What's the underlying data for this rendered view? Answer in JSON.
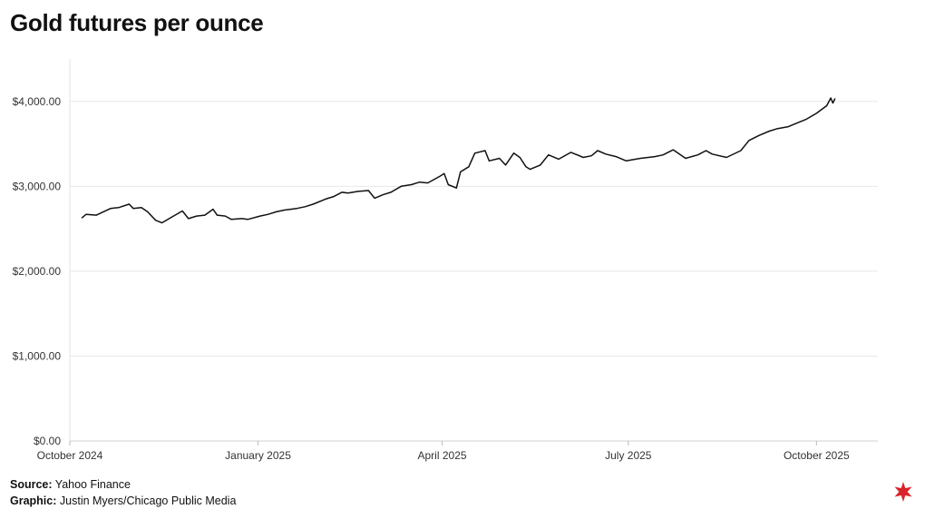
{
  "chart_data": {
    "type": "line",
    "title": "Gold futures per ounce",
    "xlabel": "",
    "ylabel": "",
    "x_ticks": [
      "October 2024",
      "January 2025",
      "April 2025",
      "July 2025",
      "October 2025"
    ],
    "y_ticks": [
      "$0.00",
      "$1,000.00",
      "$2,000.00",
      "$3,000.00",
      "$4,000.00"
    ],
    "ylim": [
      0,
      4500
    ],
    "xlim": [
      "2024-10-01",
      "2025-10-31"
    ],
    "grid": "horizontal",
    "line_color": "#111111",
    "x": [
      "2024-10-07",
      "2024-10-09",
      "2024-10-14",
      "2024-10-21",
      "2024-10-25",
      "2024-10-30",
      "2024-11-01",
      "2024-11-05",
      "2024-11-08",
      "2024-11-12",
      "2024-11-15",
      "2024-11-20",
      "2024-11-25",
      "2024-11-28",
      "2024-12-02",
      "2024-12-06",
      "2024-12-10",
      "2024-12-12",
      "2024-12-16",
      "2024-12-19",
      "2024-12-24",
      "2024-12-27",
      "2025-01-02",
      "2025-01-06",
      "2025-01-10",
      "2025-01-14",
      "2025-01-20",
      "2025-01-24",
      "2025-01-28",
      "2025-02-03",
      "2025-02-07",
      "2025-02-11",
      "2025-02-14",
      "2025-02-19",
      "2025-02-24",
      "2025-02-27",
      "2025-03-03",
      "2025-03-07",
      "2025-03-12",
      "2025-03-17",
      "2025-03-21",
      "2025-03-25",
      "2025-03-31",
      "2025-04-02",
      "2025-04-04",
      "2025-04-08",
      "2025-04-10",
      "2025-04-14",
      "2025-04-17",
      "2025-04-22",
      "2025-04-24",
      "2025-04-29",
      "2025-05-02",
      "2025-05-06",
      "2025-05-09",
      "2025-05-12",
      "2025-05-14",
      "2025-05-19",
      "2025-05-23",
      "2025-05-28",
      "2025-06-03",
      "2025-06-09",
      "2025-06-13",
      "2025-06-16",
      "2025-06-20",
      "2025-06-25",
      "2025-06-30",
      "2025-07-07",
      "2025-07-14",
      "2025-07-18",
      "2025-07-23",
      "2025-07-29",
      "2025-08-04",
      "2025-08-08",
      "2025-08-11",
      "2025-08-18",
      "2025-08-25",
      "2025-08-29",
      "2025-09-03",
      "2025-09-08",
      "2025-09-12",
      "2025-09-17",
      "2025-09-23",
      "2025-09-26",
      "2025-10-01",
      "2025-10-06",
      "2025-10-08",
      "2025-10-09",
      "2025-10-10"
    ],
    "values": [
      2630,
      2670,
      2660,
      2740,
      2750,
      2790,
      2740,
      2750,
      2700,
      2600,
      2570,
      2640,
      2710,
      2620,
      2650,
      2660,
      2730,
      2660,
      2650,
      2610,
      2620,
      2610,
      2650,
      2670,
      2700,
      2720,
      2740,
      2760,
      2790,
      2850,
      2880,
      2930,
      2920,
      2940,
      2950,
      2860,
      2900,
      2930,
      3000,
      3020,
      3050,
      3040,
      3120,
      3150,
      3020,
      2980,
      3170,
      3230,
      3390,
      3420,
      3300,
      3330,
      3250,
      3390,
      3340,
      3230,
      3200,
      3250,
      3370,
      3320,
      3400,
      3340,
      3360,
      3420,
      3380,
      3350,
      3300,
      3330,
      3350,
      3370,
      3430,
      3330,
      3370,
      3420,
      3380,
      3340,
      3420,
      3540,
      3600,
      3650,
      3680,
      3700,
      3760,
      3790,
      3860,
      3950,
      4040,
      3980,
      4030
    ]
  },
  "footer": {
    "source_label": "Source:",
    "source_text": "Yahoo Finance",
    "graphic_label": "Graphic:",
    "graphic_text": "Justin Myers/Chicago Public Media"
  },
  "logo": {
    "icon": "chicago-star-icon",
    "color": "#d8232a"
  }
}
